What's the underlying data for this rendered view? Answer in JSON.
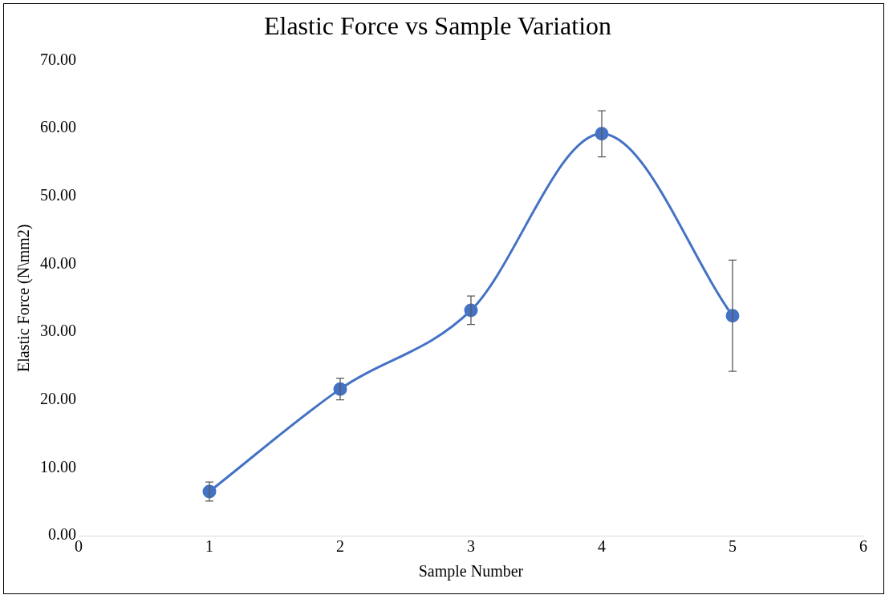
{
  "chart_data": {
    "type": "line",
    "title": "Elastic Force vs Sample Variation",
    "xlabel": "Sample Number",
    "ylabel": "Elastic Force (N\\mm2)",
    "x": [
      1,
      2,
      3,
      4,
      5
    ],
    "series": [
      {
        "color": "#4472c4",
        "values": [
          6.5,
          21.6,
          33.2,
          59.2,
          32.4
        ],
        "errors": [
          1.4,
          1.6,
          2.1,
          3.4,
          8.2
        ]
      }
    ],
    "xlim": [
      0,
      6
    ],
    "xticks": [
      0,
      1,
      2,
      3,
      4,
      5,
      6
    ],
    "ylim": [
      0,
      70
    ],
    "yticks": [
      {
        "value": 0,
        "label": "0.00"
      },
      {
        "value": 10,
        "label": "10.00"
      },
      {
        "value": 20,
        "label": "20.00"
      },
      {
        "value": 30,
        "label": "30.00"
      },
      {
        "value": 40,
        "label": "40.00"
      },
      {
        "value": 50,
        "label": "50.00"
      },
      {
        "value": 60,
        "label": "60.00"
      },
      {
        "value": 70,
        "label": "70.00"
      }
    ],
    "grid": false,
    "legend": false,
    "marker": "circle",
    "line_style": "solid"
  }
}
